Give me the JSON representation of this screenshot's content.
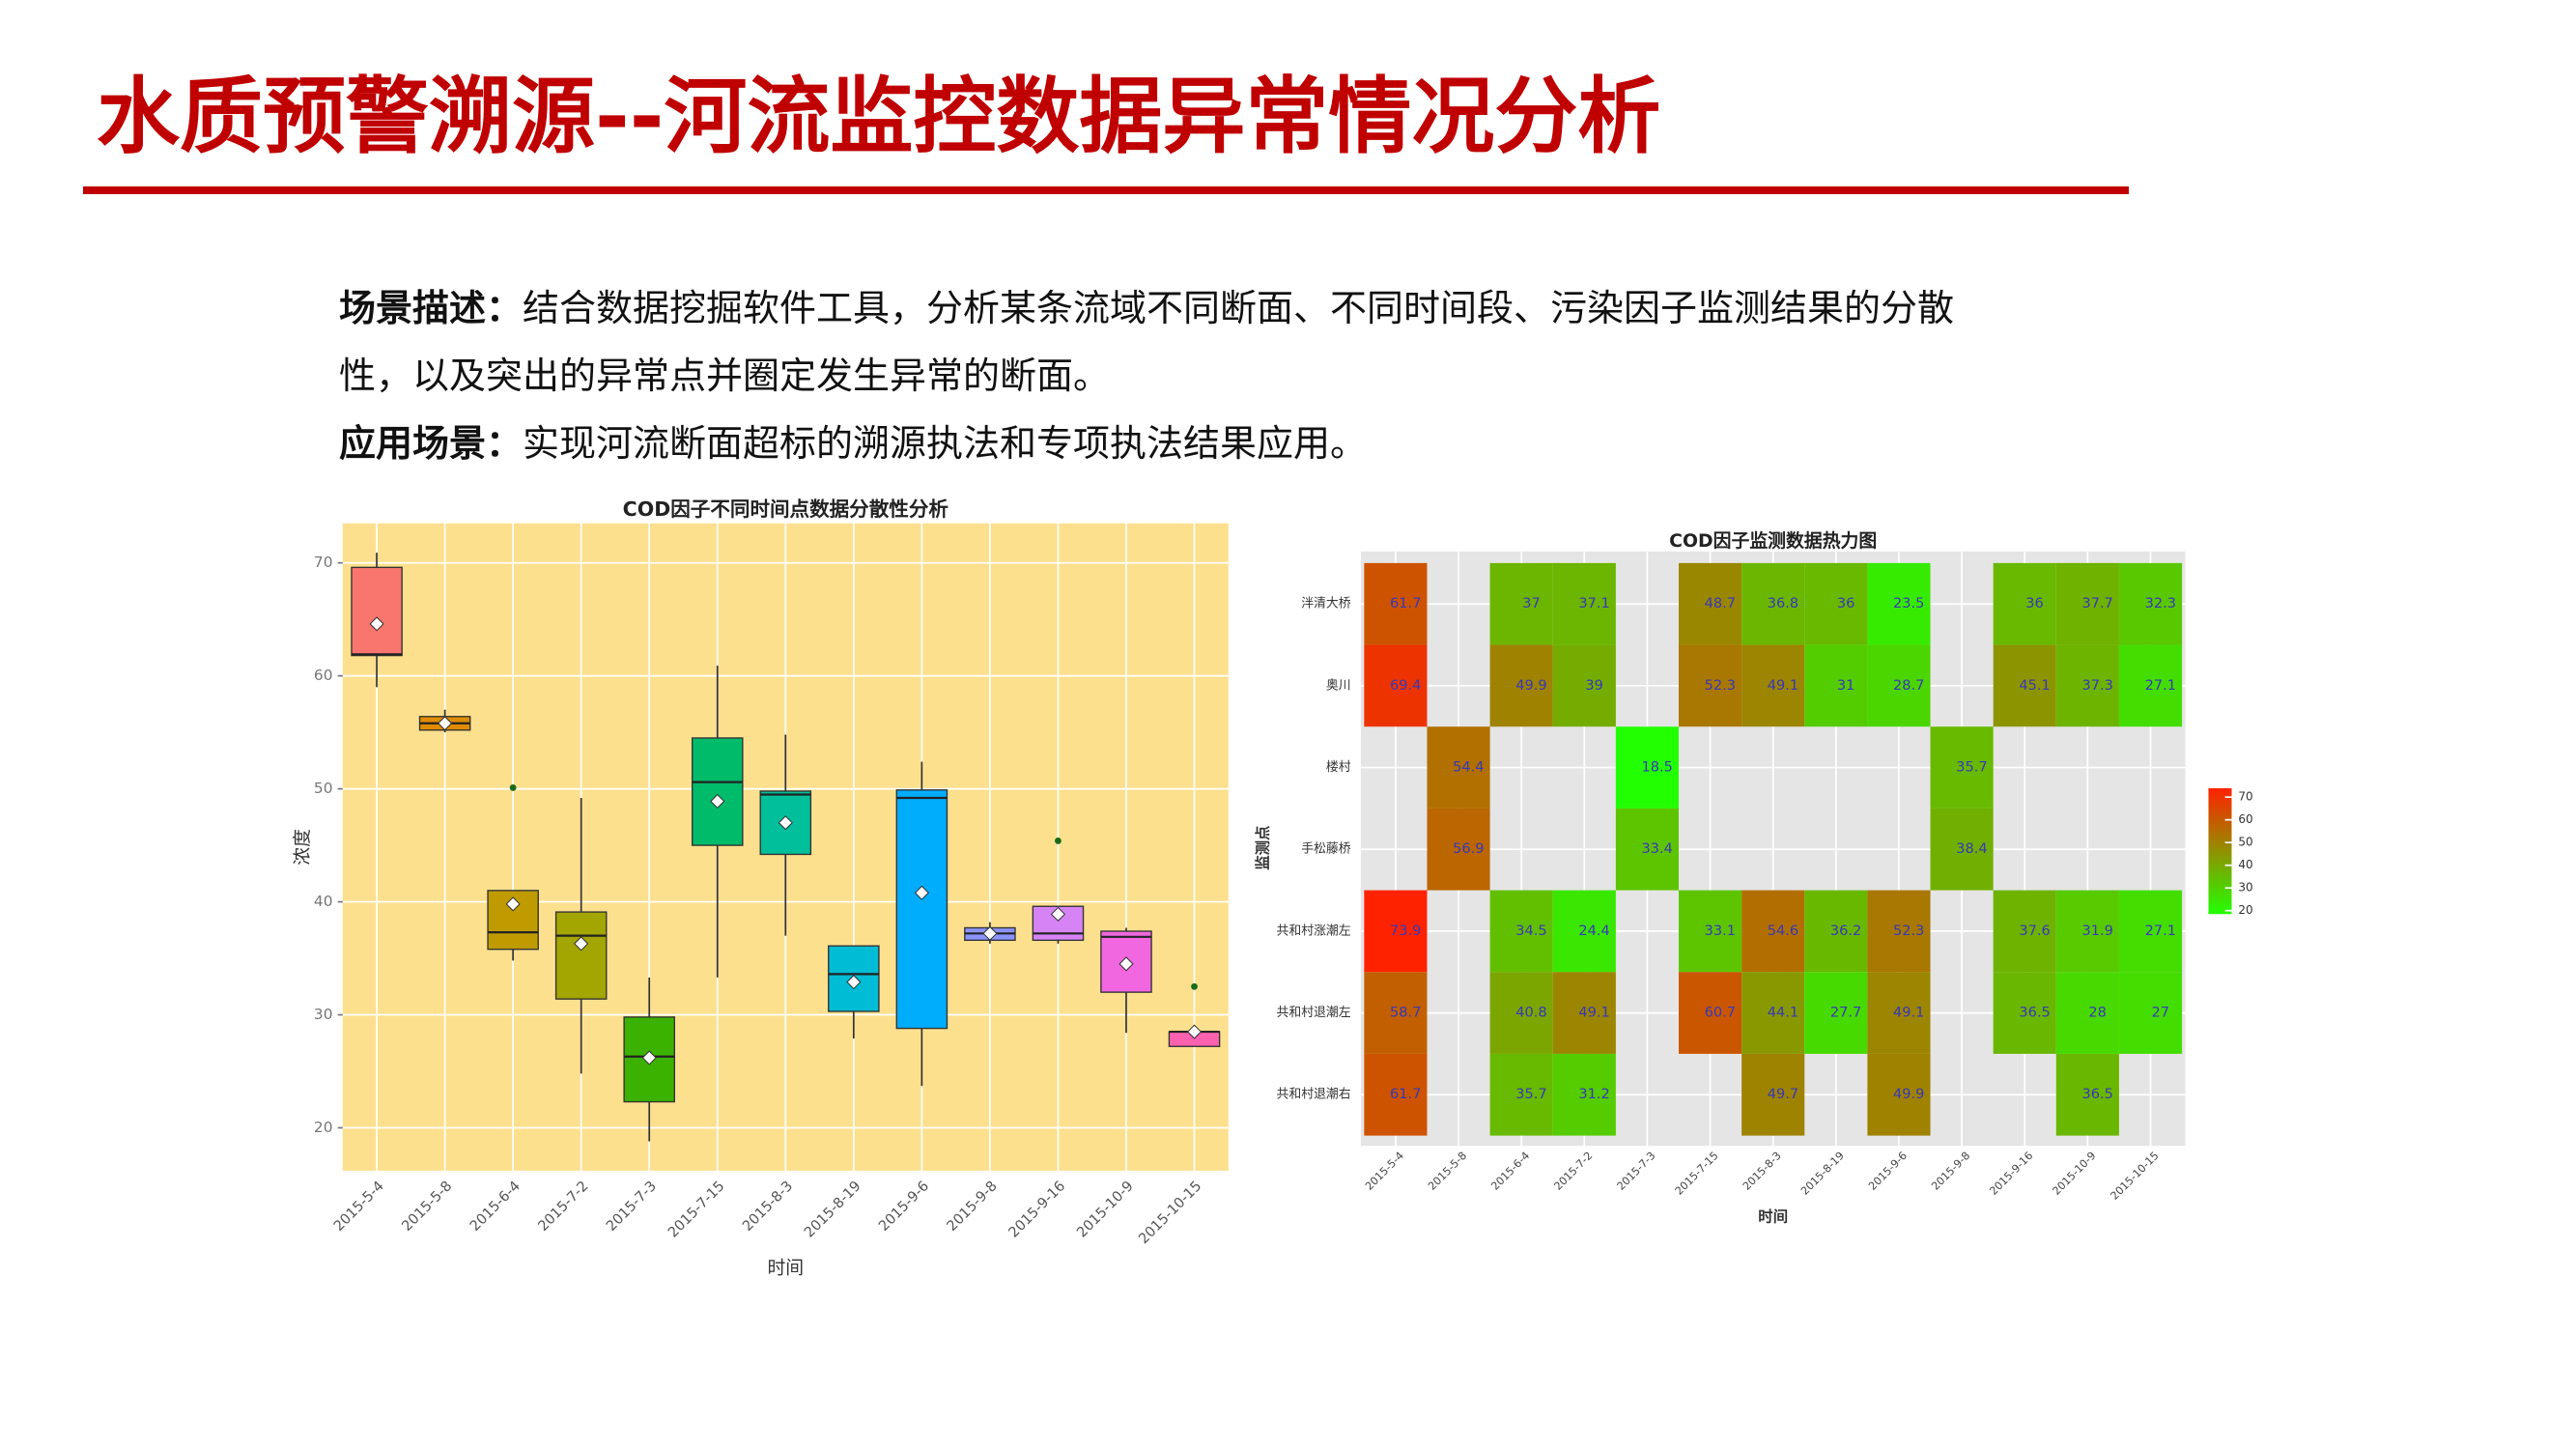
{
  "header": {
    "title": "水质预警溯源--河流监控数据异常情况分析"
  },
  "description": [
    {
      "label": "场景描述：",
      "text": "结合数据挖掘软件工具，分析某条流域不同断面、不同时间段、污染因子监测结果的分散性，以及突出的异常点并圈定发生异常的断面。"
    },
    {
      "label": "应用场景：",
      "text": "实现河流断面超标的溯源执法和专项执法结果应用。"
    }
  ],
  "chart_data": [
    {
      "type": "boxplot",
      "title": "COD因子不同时间点数据分散性分析",
      "x_label": "时间",
      "y_label": "浓度",
      "categories": [
        "2015-5-4",
        "2015-5-8",
        "2015-6-4",
        "2015-7-2",
        "2015-7-3",
        "2015-7-15",
        "2015-8-3",
        "2015-8-19",
        "2015-9-6",
        "2015-9-8",
        "2015-9-16",
        "2015-10-9",
        "2015-10-15"
      ],
      "boxes": [
        {
          "min": 59.0,
          "q1": 61.8,
          "median": 61.9,
          "q3": 69.6,
          "max": 70.9,
          "mean": 64.6,
          "outliers": [],
          "color": "#f8766d"
        },
        {
          "min": 55.0,
          "q1": 55.2,
          "median": 55.8,
          "q3": 56.4,
          "max": 57.0,
          "mean": 55.8,
          "outliers": [],
          "color": "#e08b00"
        },
        {
          "min": 34.8,
          "q1": 35.8,
          "median": 37.3,
          "q3": 41.0,
          "max": 41.0,
          "mean": 39.8,
          "outliers": [
            50.1
          ],
          "color": "#c09b00"
        },
        {
          "min": 24.8,
          "q1": 31.4,
          "median": 37.0,
          "q3": 39.1,
          "max": 49.2,
          "mean": 36.3,
          "outliers": [],
          "color": "#a3a500"
        },
        {
          "min": 18.8,
          "q1": 22.3,
          "median": 26.3,
          "q3": 29.8,
          "max": 33.3,
          "mean": 26.2,
          "outliers": [],
          "color": "#3cb200"
        },
        {
          "min": 33.3,
          "q1": 45.0,
          "median": 50.6,
          "q3": 54.5,
          "max": 60.9,
          "mean": 48.9,
          "outliers": [],
          "color": "#00bb6a"
        },
        {
          "min": 37.0,
          "q1": 44.2,
          "median": 49.5,
          "q3": 49.8,
          "max": 54.8,
          "mean": 47.0,
          "outliers": [],
          "color": "#00bf9a"
        },
        {
          "min": 27.9,
          "q1": 30.3,
          "median": 33.6,
          "q3": 36.1,
          "max": 36.1,
          "mean": 32.9,
          "outliers": [],
          "color": "#00bcd4"
        },
        {
          "min": 23.7,
          "q1": 28.8,
          "median": 49.2,
          "q3": 49.9,
          "max": 52.4,
          "mean": 40.8,
          "outliers": [],
          "color": "#00acfc"
        },
        {
          "min": 36.3,
          "q1": 36.6,
          "median": 37.2,
          "q3": 37.7,
          "max": 38.2,
          "mean": 37.2,
          "outliers": [],
          "color": "#8b93ff"
        },
        {
          "min": 36.3,
          "q1": 36.6,
          "median": 37.2,
          "q3": 39.6,
          "max": 39.6,
          "mean": 38.9,
          "outliers": [
            45.4
          ],
          "color": "#d684f5"
        },
        {
          "min": 28.4,
          "q1": 32.0,
          "median": 36.9,
          "q3": 37.4,
          "max": 37.7,
          "mean": 34.5,
          "outliers": [],
          "color": "#f067e0"
        },
        {
          "min": 27.2,
          "q1": 27.2,
          "median": 28.5,
          "q3": 28.5,
          "max": 28.5,
          "mean": 28.5,
          "outliers": [
            32.5
          ],
          "color": "#fc61b0"
        }
      ],
      "ylim": [
        16.2,
        73.5
      ],
      "yticks": [
        20,
        30,
        40,
        50,
        60,
        70
      ],
      "grid": true,
      "background": "#fde08e"
    },
    {
      "type": "heatmap",
      "title": "COD因子监测数据热力图",
      "x_label": "时间",
      "y_label": "监测点",
      "categories": [
        "2015-5-4",
        "2015-5-8",
        "2015-6-4",
        "2015-7-2",
        "2015-7-3",
        "2015-7-15",
        "2015-8-3",
        "2015-8-19",
        "2015-9-6",
        "2015-9-8",
        "2015-9-16",
        "2015-10-9",
        "2015-10-15"
      ],
      "rows": [
        "泮清大桥",
        "奥川",
        "楼村",
        "手松藤桥",
        "共和村涨潮左",
        "共和村退潮左",
        "共和村退潮右"
      ],
      "values": [
        [
          61.7,
          null,
          37,
          37.1,
          null,
          48.7,
          36.8,
          36,
          23.5,
          null,
          36,
          37.7,
          32.3
        ],
        [
          69.4,
          null,
          49.9,
          39,
          null,
          52.3,
          49.1,
          31,
          28.7,
          null,
          45.1,
          37.3,
          27.1
        ],
        [
          null,
          54.4,
          null,
          null,
          18.5,
          null,
          null,
          null,
          null,
          35.7,
          null,
          null,
          null
        ],
        [
          null,
          56.9,
          null,
          null,
          33.4,
          null,
          null,
          null,
          null,
          38.4,
          null,
          null,
          null
        ],
        [
          73.9,
          null,
          34.5,
          24.4,
          null,
          33.1,
          54.6,
          36.2,
          52.3,
          null,
          37.6,
          31.9,
          27.1
        ],
        [
          58.7,
          null,
          40.8,
          49.1,
          null,
          60.7,
          44.1,
          27.7,
          49.1,
          null,
          36.5,
          28,
          27
        ],
        [
          61.7,
          null,
          35.7,
          31.2,
          null,
          null,
          49.7,
          null,
          49.9,
          null,
          null,
          36.5,
          null
        ]
      ],
      "zlim": [
        18.5,
        73.9
      ],
      "color_low": "#22ff00",
      "color_high": "#ff2200",
      "label_color": "#3838b8",
      "legend_ticks": [
        70,
        60,
        50,
        40,
        30,
        20
      ],
      "background": "#e5e5e5"
    }
  ]
}
